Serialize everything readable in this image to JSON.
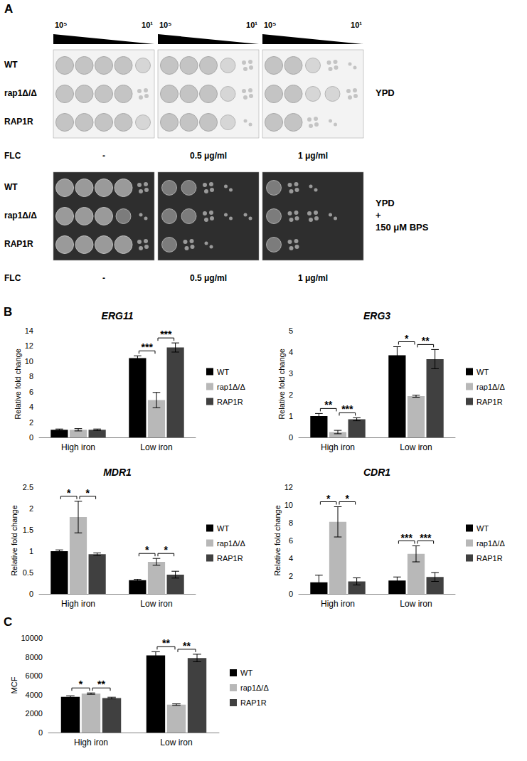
{
  "panels": [
    "A",
    "B",
    "C"
  ],
  "spot_assay": {
    "dilution_start": "10⁵",
    "dilution_end": "10¹",
    "strains": [
      "WT",
      "rap1Δ/Δ",
      "RAP1R"
    ],
    "flc_label": "FLC",
    "flc_conditions": [
      "-",
      "0.5 μg/ml",
      "1 μg/ml"
    ],
    "plates": [
      {
        "medium": [
          "YPD"
        ],
        "growth": [
          [
            [
              4,
              4,
              4,
              4,
              3
            ],
            [
              4,
              4,
              4,
              3,
              2
            ],
            [
              4,
              4,
              3,
              2,
              1
            ]
          ],
          [
            [
              4,
              4,
              4,
              4,
              2
            ],
            [
              4,
              4,
              4,
              3,
              2
            ],
            [
              4,
              4,
              3,
              3,
              2
            ]
          ],
          [
            [
              4,
              4,
              4,
              4,
              3
            ],
            [
              4,
              4,
              4,
              3,
              1
            ],
            [
              4,
              4,
              2,
              1,
              0
            ]
          ]
        ]
      },
      {
        "medium": [
          "YPD",
          "+",
          "150 μM BPS"
        ],
        "growth": [
          [
            [
              4,
              4,
              4,
              4,
              2
            ],
            [
              3,
              3,
              2,
              1,
              0
            ],
            [
              3,
              2,
              1,
              0,
              0
            ]
          ],
          [
            [
              4,
              4,
              4,
              3,
              1
            ],
            [
              3,
              3,
              2,
              1,
              1
            ],
            [
              3,
              2,
              2,
              1,
              0
            ]
          ],
          [
            [
              4,
              4,
              4,
              4,
              2
            ],
            [
              3,
              2,
              1,
              0,
              0
            ],
            [
              3,
              2,
              0,
              0,
              0
            ]
          ]
        ]
      }
    ]
  },
  "chart_data": [
    {
      "type": "bar",
      "title": "ERG11",
      "ylabel": "Relative fold change",
      "categories": [
        "High iron",
        "Low iron"
      ],
      "series": [
        {
          "name": "WT",
          "color": "#000000",
          "values": [
            1.0,
            10.4
          ],
          "errors": [
            0.1,
            0.3
          ]
        },
        {
          "name": "rap1Δ/Δ",
          "color": "#b8b8b8",
          "values": [
            1.0,
            4.9
          ],
          "errors": [
            0.15,
            1.0
          ]
        },
        {
          "name": "RAP1R",
          "color": "#404040",
          "values": [
            1.0,
            11.8
          ],
          "errors": [
            0.1,
            0.6
          ]
        }
      ],
      "ylim": [
        0,
        14
      ],
      "yticks": [
        0,
        2,
        4,
        6,
        8,
        10,
        12,
        14
      ],
      "grid": false,
      "legend": "right",
      "significance": [
        {
          "category": "Low iron",
          "pair": [
            "WT",
            "rap1Δ/Δ"
          ],
          "label": "***"
        },
        {
          "category": "Low iron",
          "pair": [
            "rap1Δ/Δ",
            "RAP1R"
          ],
          "label": "***"
        }
      ]
    },
    {
      "type": "bar",
      "title": "ERG3",
      "ylabel": "Relative fold change",
      "categories": [
        "High iron",
        "Low iron"
      ],
      "series": [
        {
          "name": "WT",
          "color": "#000000",
          "values": [
            1.0,
            3.85
          ],
          "errors": [
            0.12,
            0.4
          ]
        },
        {
          "name": "rap1Δ/Δ",
          "color": "#b8b8b8",
          "values": [
            0.25,
            1.93
          ],
          "errors": [
            0.08,
            0.05
          ]
        },
        {
          "name": "RAP1R",
          "color": "#404040",
          "values": [
            0.85,
            3.67
          ],
          "errors": [
            0.07,
            0.45
          ]
        }
      ],
      "ylim": [
        0,
        5
      ],
      "yticks": [
        0,
        1,
        2,
        3,
        4,
        5
      ],
      "grid": false,
      "legend": "right",
      "significance": [
        {
          "category": "High iron",
          "pair": [
            "WT",
            "rap1Δ/Δ"
          ],
          "label": "**"
        },
        {
          "category": "High iron",
          "pair": [
            "rap1Δ/Δ",
            "RAP1R"
          ],
          "label": "***"
        },
        {
          "category": "Low iron",
          "pair": [
            "WT",
            "rap1Δ/Δ"
          ],
          "label": "*"
        },
        {
          "category": "Low iron",
          "pair": [
            "rap1Δ/Δ",
            "RAP1R"
          ],
          "label": "**"
        }
      ]
    },
    {
      "type": "bar",
      "title": "MDR1",
      "ylabel": "Relative fold change",
      "categories": [
        "High iron",
        "Low iron"
      ],
      "series": [
        {
          "name": "WT",
          "color": "#000000",
          "values": [
            1.0,
            0.32
          ],
          "errors": [
            0.03,
            0.02
          ]
        },
        {
          "name": "rap1Δ/Δ",
          "color": "#b8b8b8",
          "values": [
            1.8,
            0.75
          ],
          "errors": [
            0.37,
            0.08
          ]
        },
        {
          "name": "RAP1R",
          "color": "#404040",
          "values": [
            0.93,
            0.45
          ],
          "errors": [
            0.03,
            0.08
          ]
        }
      ],
      "ylim": [
        0,
        2.5
      ],
      "yticks": [
        0,
        0.5,
        1,
        1.5,
        2,
        2.5
      ],
      "grid": false,
      "legend": "right",
      "significance": [
        {
          "category": "High iron",
          "pair": [
            "WT",
            "rap1Δ/Δ"
          ],
          "label": "*"
        },
        {
          "category": "High iron",
          "pair": [
            "rap1Δ/Δ",
            "RAP1R"
          ],
          "label": "*"
        },
        {
          "category": "Low iron",
          "pair": [
            "WT",
            "rap1Δ/Δ"
          ],
          "label": "*"
        },
        {
          "category": "Low iron",
          "pair": [
            "rap1Δ/Δ",
            "RAP1R"
          ],
          "label": "*"
        }
      ]
    },
    {
      "type": "bar",
      "title": "CDR1",
      "ylabel": "Relative fold change",
      "categories": [
        "High iron",
        "Low iron"
      ],
      "series": [
        {
          "name": "WT",
          "color": "#000000",
          "values": [
            1.3,
            1.5
          ],
          "errors": [
            0.8,
            0.4
          ]
        },
        {
          "name": "rap1Δ/Δ",
          "color": "#b8b8b8",
          "values": [
            8.1,
            4.5
          ],
          "errors": [
            1.7,
            0.9
          ]
        },
        {
          "name": "RAP1R",
          "color": "#404040",
          "values": [
            1.4,
            1.9
          ],
          "errors": [
            0.4,
            0.5
          ]
        }
      ],
      "ylim": [
        0,
        12
      ],
      "yticks": [
        0,
        2,
        4,
        6,
        8,
        10,
        12
      ],
      "grid": false,
      "legend": "right",
      "significance": [
        {
          "category": "High iron",
          "pair": [
            "WT",
            "rap1Δ/Δ"
          ],
          "label": "*"
        },
        {
          "category": "High iron",
          "pair": [
            "rap1Δ/Δ",
            "RAP1R"
          ],
          "label": "*"
        },
        {
          "category": "Low iron",
          "pair": [
            "WT",
            "rap1Δ/Δ"
          ],
          "label": "***"
        },
        {
          "category": "Low iron",
          "pair": [
            "rap1Δ/Δ",
            "RAP1R"
          ],
          "label": "***"
        }
      ]
    },
    {
      "type": "bar",
      "ylabel": "MCF",
      "categories": [
        "High iron",
        "Low iron"
      ],
      "series": [
        {
          "name": "WT",
          "color": "#000000",
          "values": [
            3780,
            8150
          ],
          "errors": [
            100,
            400
          ]
        },
        {
          "name": "rap1Δ/Δ",
          "color": "#b8b8b8",
          "values": [
            4120,
            2950
          ],
          "errors": [
            70,
            80
          ]
        },
        {
          "name": "RAP1R",
          "color": "#404040",
          "values": [
            3650,
            7880
          ],
          "errors": [
            90,
            400
          ]
        }
      ],
      "ylim": [
        0,
        10000
      ],
      "yticks": [
        0,
        2000,
        4000,
        6000,
        8000,
        10000
      ],
      "grid": false,
      "legend": "right",
      "significance": [
        {
          "category": "High iron",
          "pair": [
            "WT",
            "rap1Δ/Δ"
          ],
          "label": "*"
        },
        {
          "category": "High iron",
          "pair": [
            "rap1Δ/Δ",
            "RAP1R"
          ],
          "label": "**"
        },
        {
          "category": "Low iron",
          "pair": [
            "WT",
            "rap1Δ/Δ"
          ],
          "label": "**"
        },
        {
          "category": "Low iron",
          "pair": [
            "rap1Δ/Δ",
            "RAP1R"
          ],
          "label": "**"
        }
      ]
    }
  ]
}
